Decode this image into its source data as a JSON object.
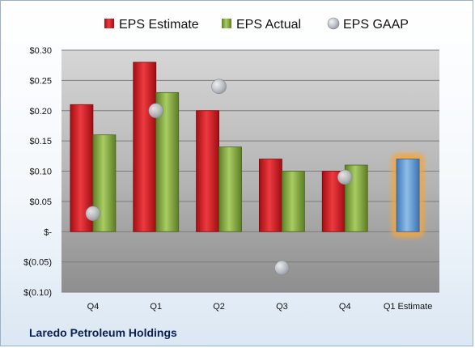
{
  "company": "Laredo Petroleum Holdings",
  "chart_data": {
    "type": "bar",
    "categories": [
      "Q4",
      "Q1",
      "Q2",
      "Q3",
      "Q4",
      "Q1 Estimate"
    ],
    "series": [
      {
        "name": "EPS Estimate",
        "color": "#e0262b",
        "values": [
          0.21,
          0.28,
          0.2,
          0.12,
          0.1,
          null
        ]
      },
      {
        "name": "EPS Actual",
        "color": "#8fb447",
        "values": [
          0.16,
          0.23,
          0.14,
          0.1,
          0.11,
          null
        ]
      },
      {
        "name": "EPS GAAP",
        "color": "#b9bec4",
        "type": "scatter",
        "values": [
          0.03,
          0.2,
          0.24,
          -0.06,
          0.09,
          null
        ]
      }
    ],
    "forecast": {
      "category": "Q1 Estimate",
      "value": 0.12,
      "color": "#5b9bd5",
      "glow": "#f5a53c"
    },
    "ylim": [
      -0.1,
      0.3
    ],
    "yticks": [
      0.3,
      0.25,
      0.2,
      0.15,
      0.1,
      0.05,
      0,
      -0.05,
      -0.1
    ],
    "ytick_labels": [
      "$0.30",
      "$0.25",
      "$0.20",
      "$0.15",
      "$0.10",
      "$0.05",
      "$-",
      "$(0.05)",
      "$(0.10)"
    ],
    "grid": true,
    "legend": "top"
  }
}
